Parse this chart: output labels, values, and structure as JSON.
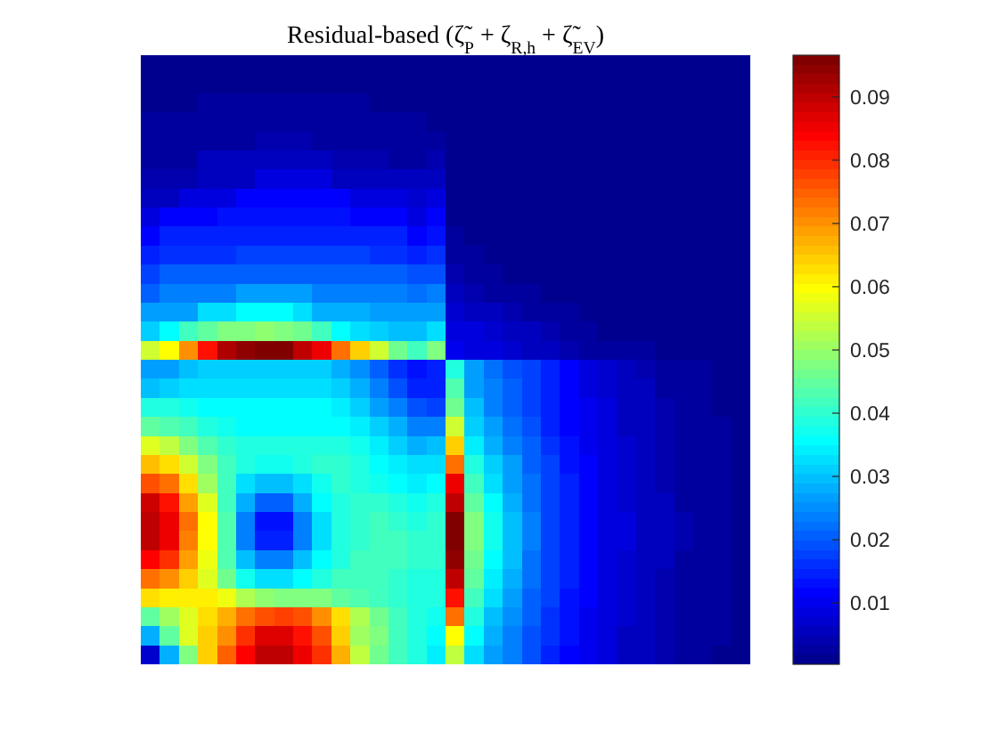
{
  "chart_data": {
    "type": "heatmap",
    "title": "Residual-based (ζ̃$_{P}$ + ζ$_{R,h}$ + ζ̃$_{EV}$)",
    "categories": [
      null,
      null,
      null,
      null,
      null,
      null,
      null,
      null,
      null,
      null,
      null,
      null,
      null,
      null,
      null,
      null,
      null,
      null,
      null,
      null,
      null,
      null,
      null,
      null,
      null,
      null,
      null,
      null,
      null,
      null,
      null,
      null
    ],
    "y_categories": [
      null,
      null,
      null,
      null,
      null,
      null,
      null,
      null,
      null,
      null,
      null,
      null,
      null,
      null,
      null,
      null,
      null,
      null,
      null,
      null,
      null,
      null,
      null,
      null,
      null,
      null,
      null,
      null,
      null,
      null,
      null,
      null
    ],
    "cells": [
      [
        0.001,
        0.001,
        0.001,
        0.001,
        0.001,
        0.001,
        0.001,
        0.001,
        0.001,
        0.001,
        0.001,
        0.001,
        0.001,
        0.001,
        0.001,
        0.001,
        0.001,
        0.001,
        0.001,
        0.001,
        0.001,
        0.001,
        0.001,
        0.001,
        0.001,
        0.001,
        0.001,
        0.001,
        0.001,
        0.001,
        0.001,
        0.001
      ],
      [
        0.001,
        0.001,
        0.001,
        0.001,
        0.001,
        0.001,
        0.001,
        0.001,
        0.001,
        0.001,
        0.001,
        0.001,
        0.001,
        0.001,
        0.001,
        0.001,
        0.001,
        0.001,
        0.001,
        0.001,
        0.001,
        0.001,
        0.001,
        0.001,
        0.001,
        0.001,
        0.001,
        0.001,
        0.001,
        0.001,
        0.001,
        0.001
      ],
      [
        0.001,
        0.001,
        0.001,
        0.002,
        0.002,
        0.002,
        0.002,
        0.002,
        0.002,
        0.002,
        0.002,
        0.002,
        0.001,
        0.001,
        0.001,
        0.001,
        0.001,
        0.001,
        0.001,
        0.001,
        0.001,
        0.001,
        0.001,
        0.001,
        0.001,
        0.001,
        0.001,
        0.001,
        0.001,
        0.001,
        0.001,
        0.001
      ],
      [
        0.002,
        0.002,
        0.002,
        0.003,
        0.003,
        0.003,
        0.003,
        0.003,
        0.003,
        0.003,
        0.003,
        0.003,
        0.002,
        0.002,
        0.002,
        0.001,
        0.001,
        0.001,
        0.001,
        0.001,
        0.001,
        0.001,
        0.001,
        0.001,
        0.001,
        0.001,
        0.001,
        0.001,
        0.001,
        0.001,
        0.001,
        0.001
      ],
      [
        0.002,
        0.003,
        0.003,
        0.003,
        0.003,
        0.003,
        0.004,
        0.004,
        0.004,
        0.003,
        0.003,
        0.003,
        0.003,
        0.003,
        0.003,
        0.003,
        0.001,
        0.001,
        0.001,
        0.001,
        0.001,
        0.001,
        0.001,
        0.001,
        0.001,
        0.001,
        0.001,
        0.001,
        0.001,
        0.001,
        0.001,
        0.001
      ],
      [
        0.003,
        0.003,
        0.003,
        0.005,
        0.005,
        0.005,
        0.005,
        0.005,
        0.005,
        0.005,
        0.004,
        0.004,
        0.004,
        0.003,
        0.003,
        0.004,
        0.001,
        0.001,
        0.001,
        0.001,
        0.001,
        0.001,
        0.001,
        0.001,
        0.001,
        0.001,
        0.001,
        0.001,
        0.001,
        0.001,
        0.001,
        0.001
      ],
      [
        0.004,
        0.004,
        0.004,
        0.006,
        0.006,
        0.006,
        0.009,
        0.009,
        0.009,
        0.009,
        0.006,
        0.006,
        0.006,
        0.005,
        0.005,
        0.006,
        0.001,
        0.001,
        0.001,
        0.001,
        0.001,
        0.001,
        0.001,
        0.001,
        0.001,
        0.001,
        0.001,
        0.001,
        0.001,
        0.001,
        0.001,
        0.001
      ],
      [
        0.006,
        0.006,
        0.009,
        0.009,
        0.009,
        0.011,
        0.011,
        0.011,
        0.011,
        0.011,
        0.011,
        0.009,
        0.009,
        0.009,
        0.007,
        0.008,
        0.001,
        0.001,
        0.001,
        0.001,
        0.001,
        0.001,
        0.001,
        0.001,
        0.001,
        0.001,
        0.001,
        0.001,
        0.001,
        0.001,
        0.001,
        0.001
      ],
      [
        0.009,
        0.011,
        0.011,
        0.011,
        0.013,
        0.013,
        0.013,
        0.013,
        0.013,
        0.013,
        0.013,
        0.011,
        0.011,
        0.011,
        0.009,
        0.011,
        0.001,
        0.001,
        0.001,
        0.001,
        0.001,
        0.001,
        0.001,
        0.001,
        0.001,
        0.001,
        0.001,
        0.001,
        0.001,
        0.001,
        0.001,
        0.001
      ],
      [
        0.011,
        0.014,
        0.014,
        0.014,
        0.015,
        0.015,
        0.015,
        0.015,
        0.015,
        0.015,
        0.015,
        0.015,
        0.014,
        0.014,
        0.012,
        0.013,
        0.002,
        0.001,
        0.001,
        0.001,
        0.001,
        0.001,
        0.001,
        0.001,
        0.001,
        0.001,
        0.001,
        0.001,
        0.001,
        0.001,
        0.001,
        0.001
      ],
      [
        0.014,
        0.016,
        0.016,
        0.016,
        0.016,
        0.017,
        0.017,
        0.017,
        0.017,
        0.017,
        0.017,
        0.017,
        0.016,
        0.016,
        0.015,
        0.016,
        0.003,
        0.002,
        0.001,
        0.001,
        0.001,
        0.001,
        0.001,
        0.001,
        0.001,
        0.001,
        0.001,
        0.001,
        0.001,
        0.001,
        0.001,
        0.001
      ],
      [
        0.017,
        0.02,
        0.02,
        0.02,
        0.02,
        0.021,
        0.021,
        0.021,
        0.021,
        0.021,
        0.021,
        0.02,
        0.02,
        0.02,
        0.019,
        0.019,
        0.004,
        0.003,
        0.002,
        0.001,
        0.001,
        0.001,
        0.001,
        0.001,
        0.001,
        0.001,
        0.001,
        0.001,
        0.001,
        0.001,
        0.001,
        0.001
      ],
      [
        0.021,
        0.023,
        0.023,
        0.023,
        0.023,
        0.026,
        0.026,
        0.026,
        0.026,
        0.024,
        0.024,
        0.024,
        0.023,
        0.023,
        0.022,
        0.023,
        0.005,
        0.004,
        0.003,
        0.002,
        0.002,
        0.001,
        0.001,
        0.001,
        0.001,
        0.001,
        0.001,
        0.001,
        0.001,
        0.001,
        0.001,
        0.001
      ],
      [
        0.026,
        0.027,
        0.027,
        0.032,
        0.032,
        0.036,
        0.036,
        0.036,
        0.033,
        0.028,
        0.028,
        0.028,
        0.026,
        0.026,
        0.026,
        0.027,
        0.007,
        0.006,
        0.005,
        0.004,
        0.003,
        0.002,
        0.002,
        0.001,
        0.001,
        0.001,
        0.001,
        0.001,
        0.001,
        0.001,
        0.001,
        0.001
      ],
      [
        0.031,
        0.036,
        0.041,
        0.045,
        0.047,
        0.048,
        0.049,
        0.048,
        0.046,
        0.041,
        0.036,
        0.032,
        0.031,
        0.03,
        0.03,
        0.032,
        0.009,
        0.008,
        0.007,
        0.006,
        0.005,
        0.004,
        0.003,
        0.002,
        0.001,
        0.001,
        0.001,
        0.001,
        0.001,
        0.001,
        0.001,
        0.001
      ],
      [
        0.055,
        0.06,
        0.071,
        0.082,
        0.091,
        0.095,
        0.096,
        0.096,
        0.09,
        0.085,
        0.074,
        0.064,
        0.055,
        0.046,
        0.041,
        0.048,
        0.01,
        0.009,
        0.008,
        0.007,
        0.006,
        0.005,
        0.004,
        0.003,
        0.002,
        0.002,
        0.002,
        0.001,
        0.001,
        0.001,
        0.001,
        0.001
      ],
      [
        0.026,
        0.027,
        0.029,
        0.031,
        0.031,
        0.031,
        0.031,
        0.031,
        0.031,
        0.031,
        0.028,
        0.025,
        0.021,
        0.016,
        0.013,
        0.014,
        0.038,
        0.026,
        0.022,
        0.019,
        0.017,
        0.014,
        0.011,
        0.009,
        0.007,
        0.006,
        0.004,
        0.003,
        0.002,
        0.002,
        0.001,
        0.001
      ],
      [
        0.03,
        0.031,
        0.033,
        0.033,
        0.033,
        0.033,
        0.033,
        0.033,
        0.033,
        0.033,
        0.031,
        0.028,
        0.024,
        0.019,
        0.015,
        0.015,
        0.043,
        0.027,
        0.023,
        0.02,
        0.017,
        0.014,
        0.011,
        0.009,
        0.007,
        0.006,
        0.005,
        0.003,
        0.002,
        0.002,
        0.001,
        0.001
      ],
      [
        0.039,
        0.038,
        0.037,
        0.036,
        0.036,
        0.036,
        0.036,
        0.036,
        0.036,
        0.036,
        0.034,
        0.031,
        0.027,
        0.023,
        0.019,
        0.018,
        0.046,
        0.029,
        0.024,
        0.021,
        0.018,
        0.015,
        0.012,
        0.01,
        0.008,
        0.006,
        0.005,
        0.004,
        0.003,
        0.002,
        0.001,
        0.001
      ],
      [
        0.045,
        0.043,
        0.041,
        0.039,
        0.037,
        0.036,
        0.036,
        0.036,
        0.036,
        0.036,
        0.035,
        0.034,
        0.031,
        0.028,
        0.024,
        0.024,
        0.055,
        0.031,
        0.026,
        0.022,
        0.019,
        0.015,
        0.012,
        0.01,
        0.008,
        0.006,
        0.005,
        0.004,
        0.003,
        0.002,
        0.002,
        0.001
      ],
      [
        0.056,
        0.053,
        0.047,
        0.043,
        0.04,
        0.039,
        0.038,
        0.038,
        0.039,
        0.039,
        0.038,
        0.037,
        0.034,
        0.031,
        0.028,
        0.029,
        0.064,
        0.034,
        0.028,
        0.024,
        0.02,
        0.016,
        0.013,
        0.01,
        0.008,
        0.007,
        0.005,
        0.004,
        0.003,
        0.002,
        0.002,
        0.001
      ],
      [
        0.066,
        0.062,
        0.055,
        0.047,
        0.042,
        0.039,
        0.037,
        0.037,
        0.039,
        0.04,
        0.04,
        0.038,
        0.036,
        0.034,
        0.032,
        0.033,
        0.074,
        0.038,
        0.031,
        0.026,
        0.021,
        0.017,
        0.013,
        0.011,
        0.009,
        0.007,
        0.005,
        0.004,
        0.003,
        0.002,
        0.002,
        0.001
      ],
      [
        0.077,
        0.073,
        0.062,
        0.05,
        0.041,
        0.033,
        0.029,
        0.029,
        0.033,
        0.037,
        0.04,
        0.039,
        0.037,
        0.036,
        0.034,
        0.036,
        0.085,
        0.042,
        0.033,
        0.027,
        0.022,
        0.017,
        0.014,
        0.011,
        0.009,
        0.007,
        0.006,
        0.004,
        0.003,
        0.002,
        0.002,
        0.001
      ],
      [
        0.088,
        0.083,
        0.069,
        0.057,
        0.042,
        0.028,
        0.021,
        0.021,
        0.028,
        0.035,
        0.039,
        0.04,
        0.04,
        0.038,
        0.037,
        0.039,
        0.09,
        0.045,
        0.035,
        0.028,
        0.022,
        0.018,
        0.014,
        0.011,
        0.009,
        0.007,
        0.006,
        0.005,
        0.003,
        0.002,
        0.002,
        0.001
      ],
      [
        0.09,
        0.086,
        0.073,
        0.06,
        0.043,
        0.024,
        0.013,
        0.013,
        0.023,
        0.033,
        0.038,
        0.04,
        0.041,
        0.04,
        0.039,
        0.04,
        0.096,
        0.047,
        0.037,
        0.029,
        0.023,
        0.018,
        0.014,
        0.012,
        0.009,
        0.008,
        0.006,
        0.005,
        0.004,
        0.003,
        0.002,
        0.001
      ],
      [
        0.09,
        0.085,
        0.072,
        0.06,
        0.043,
        0.024,
        0.014,
        0.014,
        0.023,
        0.033,
        0.038,
        0.04,
        0.041,
        0.041,
        0.04,
        0.04,
        0.096,
        0.047,
        0.037,
        0.029,
        0.023,
        0.018,
        0.014,
        0.012,
        0.009,
        0.008,
        0.006,
        0.005,
        0.004,
        0.003,
        0.002,
        0.001
      ],
      [
        0.084,
        0.08,
        0.069,
        0.058,
        0.043,
        0.03,
        0.023,
        0.023,
        0.029,
        0.035,
        0.039,
        0.041,
        0.041,
        0.041,
        0.04,
        0.04,
        0.094,
        0.046,
        0.036,
        0.029,
        0.022,
        0.018,
        0.014,
        0.011,
        0.009,
        0.007,
        0.006,
        0.005,
        0.003,
        0.003,
        0.002,
        0.001
      ],
      [
        0.074,
        0.07,
        0.064,
        0.057,
        0.046,
        0.037,
        0.033,
        0.033,
        0.036,
        0.039,
        0.041,
        0.041,
        0.041,
        0.04,
        0.039,
        0.039,
        0.09,
        0.044,
        0.034,
        0.028,
        0.022,
        0.017,
        0.014,
        0.011,
        0.009,
        0.007,
        0.006,
        0.004,
        0.003,
        0.002,
        0.002,
        0.001
      ],
      [
        0.062,
        0.061,
        0.061,
        0.061,
        0.058,
        0.052,
        0.049,
        0.048,
        0.048,
        0.047,
        0.045,
        0.043,
        0.041,
        0.04,
        0.038,
        0.038,
        0.083,
        0.041,
        0.032,
        0.026,
        0.021,
        0.017,
        0.013,
        0.011,
        0.009,
        0.007,
        0.005,
        0.004,
        0.003,
        0.002,
        0.002,
        0.001
      ],
      [
        0.045,
        0.05,
        0.057,
        0.062,
        0.067,
        0.073,
        0.077,
        0.078,
        0.076,
        0.07,
        0.062,
        0.052,
        0.046,
        0.042,
        0.039,
        0.037,
        0.073,
        0.038,
        0.03,
        0.025,
        0.02,
        0.016,
        0.013,
        0.01,
        0.008,
        0.007,
        0.005,
        0.004,
        0.003,
        0.002,
        0.002,
        0.001
      ],
      [
        0.028,
        0.044,
        0.057,
        0.065,
        0.071,
        0.08,
        0.087,
        0.087,
        0.083,
        0.076,
        0.064,
        0.051,
        0.047,
        0.042,
        0.039,
        0.036,
        0.06,
        0.035,
        0.028,
        0.024,
        0.019,
        0.016,
        0.013,
        0.01,
        0.008,
        0.006,
        0.005,
        0.004,
        0.003,
        0.002,
        0.002,
        0.001
      ],
      [
        0.007,
        0.028,
        0.048,
        0.064,
        0.075,
        0.084,
        0.09,
        0.09,
        0.086,
        0.08,
        0.068,
        0.054,
        0.046,
        0.041,
        0.038,
        0.034,
        0.054,
        0.033,
        0.027,
        0.023,
        0.019,
        0.015,
        0.012,
        0.01,
        0.008,
        0.006,
        0.005,
        0.004,
        0.003,
        0.002,
        0.001,
        0.001
      ]
    ],
    "clim": [
      0.0003,
      0.0966
    ],
    "cticks": [
      0.01,
      0.02,
      0.03,
      0.04,
      0.05,
      0.06,
      0.07,
      0.08,
      0.09
    ]
  }
}
